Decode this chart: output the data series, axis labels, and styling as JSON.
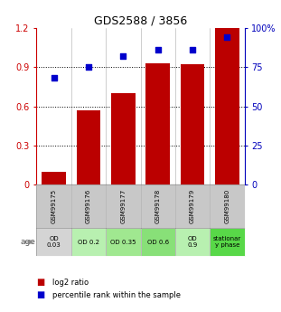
{
  "title": "GDS2588 / 3856",
  "samples": [
    "GSM99175",
    "GSM99176",
    "GSM99177",
    "GSM99178",
    "GSM99179",
    "GSM99180"
  ],
  "log2_ratio": [
    0.1,
    0.57,
    0.7,
    0.93,
    0.92,
    1.2
  ],
  "percentile_rank_pct": [
    68,
    75,
    82,
    86,
    86,
    94
  ],
  "bar_color": "#bb0000",
  "dot_color": "#0000cc",
  "ylim_left": [
    0,
    1.2
  ],
  "ylim_right": [
    0,
    100
  ],
  "yticks_left": [
    0,
    0.3,
    0.6,
    0.9,
    1.2
  ],
  "yticks_right": [
    0,
    25,
    50,
    75,
    100
  ],
  "ytick_labels_left": [
    "0",
    "0.3",
    "0.6",
    "0.9",
    "1.2"
  ],
  "ytick_labels_right": [
    "0",
    "25",
    "50",
    "75",
    "100%"
  ],
  "age_labels": [
    "OD\n0.03",
    "OD 0.2",
    "OD 0.35",
    "OD 0.6",
    "OD\n0.9",
    "stationar\ny phase"
  ],
  "age_colors": [
    "#d4d4d4",
    "#b8f0b0",
    "#a0e890",
    "#88e078",
    "#b8f0b0",
    "#58d848"
  ],
  "sample_row_color": "#c8c8c8",
  "left_tick_color": "#cc0000",
  "right_tick_color": "#0000bb",
  "legend_red_label": "log2 ratio",
  "legend_blue_label": "percentile rank within the sample"
}
